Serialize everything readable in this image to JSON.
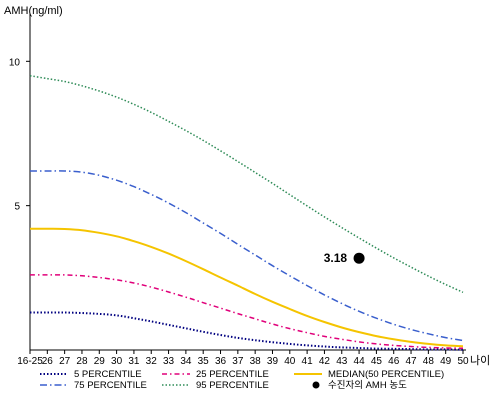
{
  "chart_data": {
    "type": "line",
    "ylabel": "AMH(ng/ml)",
    "xlabel": "나이",
    "ylim": [
      0,
      11.5
    ],
    "yticks": [
      5,
      10
    ],
    "categories": [
      "16-25",
      "26",
      "27",
      "28",
      "29",
      "30",
      "31",
      "32",
      "33",
      "34",
      "35",
      "36",
      "37",
      "38",
      "39",
      "40",
      "41",
      "42",
      "43",
      "44",
      "45",
      "46",
      "47",
      "48",
      "49",
      "50"
    ],
    "series": [
      {
        "name": "5 PERCENTILE",
        "color": "#000080",
        "dash": "1.5,2",
        "width": 2,
        "values": [
          1.3,
          1.3,
          1.3,
          1.28,
          1.25,
          1.2,
          1.1,
          0.99,
          0.87,
          0.75,
          0.63,
          0.52,
          0.42,
          0.34,
          0.27,
          0.21,
          0.16,
          0.12,
          0.09,
          0.07,
          0.05,
          0.04,
          0.03,
          0.02,
          0.02,
          0.01
        ]
      },
      {
        "name": "25 PERCENTILE",
        "color": "#e0007a",
        "dash": "5,3,1.5,3",
        "width": 1.5,
        "values": [
          2.6,
          2.6,
          2.6,
          2.57,
          2.51,
          2.43,
          2.32,
          2.18,
          2.01,
          1.83,
          1.64,
          1.45,
          1.26,
          1.08,
          0.9,
          0.74,
          0.6,
          0.47,
          0.37,
          0.28,
          0.21,
          0.16,
          0.12,
          0.09,
          0.07,
          0.06
        ]
      },
      {
        "name": "MEDIAN(50 PERCENTILE)",
        "color": "#f5c400",
        "dash": "",
        "width": 2,
        "values": [
          4.2,
          4.2,
          4.19,
          4.15,
          4.06,
          3.94,
          3.77,
          3.57,
          3.34,
          3.08,
          2.8,
          2.51,
          2.23,
          1.94,
          1.67,
          1.42,
          1.18,
          0.97,
          0.78,
          0.62,
          0.48,
          0.37,
          0.28,
          0.21,
          0.16,
          0.13
        ]
      },
      {
        "name": "75 PERCENTILE",
        "color": "#3a5fcd",
        "dash": "7,3,1.5,3",
        "width": 1.5,
        "values": [
          6.2,
          6.2,
          6.2,
          6.16,
          6.05,
          5.88,
          5.66,
          5.39,
          5.09,
          4.76,
          4.4,
          4.04,
          3.66,
          3.29,
          2.92,
          2.57,
          2.23,
          1.91,
          1.61,
          1.34,
          1.1,
          0.89,
          0.71,
          0.56,
          0.43,
          0.33
        ]
      },
      {
        "name": "95 PERCENTILE",
        "color": "#2e8b57",
        "dash": "1.5,2",
        "width": 1.5,
        "values": [
          9.5,
          9.4,
          9.3,
          9.15,
          8.97,
          8.76,
          8.51,
          8.23,
          7.92,
          7.6,
          7.26,
          6.9,
          6.53,
          6.15,
          5.77,
          5.38,
          4.99,
          4.61,
          4.24,
          3.88,
          3.53,
          3.19,
          2.87,
          2.56,
          2.27,
          2.0
        ]
      }
    ],
    "marker": {
      "label": "수진자의 AMH 농도",
      "x": "44",
      "y": 3.18,
      "value_label": "3.18",
      "color": "#000000"
    },
    "legend": {
      "position": "bottom",
      "order": [
        "5 PERCENTILE",
        "25 PERCENTILE",
        "MEDIAN(50 PERCENTILE)",
        "75 PERCENTILE",
        "95 PERCENTILE",
        "수진자의 AMH 농도"
      ]
    },
    "grid": false
  }
}
